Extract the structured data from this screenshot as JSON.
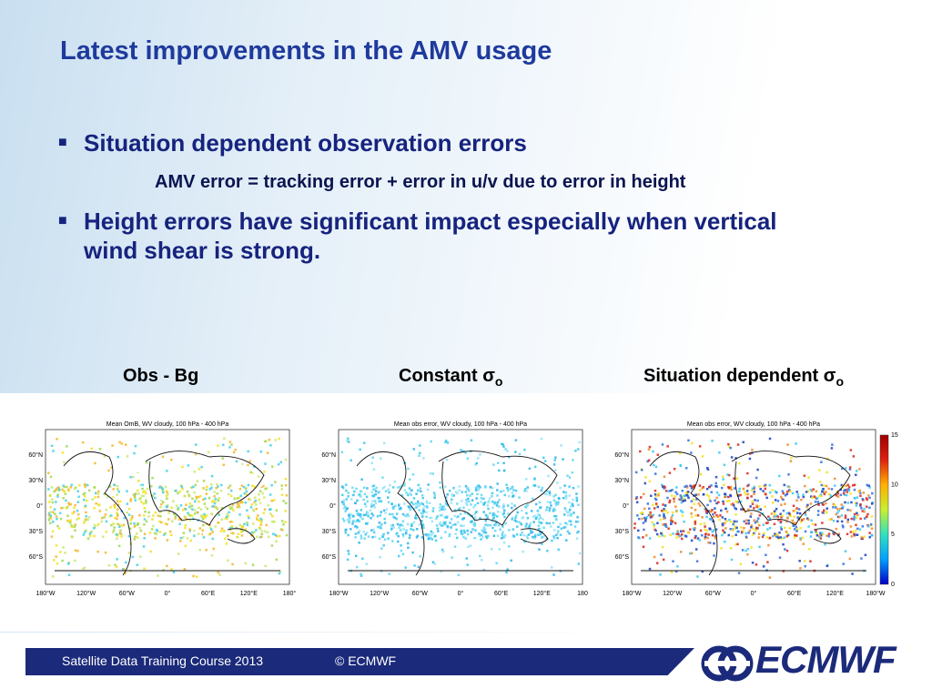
{
  "title": "Latest improvements in the AMV usage",
  "bullets": [
    {
      "text": "Situation dependent observation errors",
      "sub": "AMV error = tracking error + error in u/v due to error in height"
    },
    {
      "text": "Height errors have significant impact especially when vertical wind shear is strong."
    }
  ],
  "panels": [
    {
      "caption": "Obs - Bg",
      "map_title": "Mean OmB, WV cloudy, 100 hPa - 400 hPa",
      "lon_labels": [
        "180°W",
        "120°W",
        "60°W",
        "0°",
        "60°E",
        "120°E",
        "180°"
      ]
    },
    {
      "caption": "Constant σ",
      "caption_sub": "o",
      "map_title": "Mean obs error, WV cloudy, 100 hPa - 400 hPa",
      "lon_labels": [
        "180°W",
        "120°W",
        "60°W",
        "0°",
        "60°E",
        "120°E",
        "180"
      ]
    },
    {
      "caption": "Situation dependent σ",
      "caption_sub": "o",
      "map_title": "Mean obs error, WV cloudy, 100 hPa - 400 hPa",
      "lon_labels": [
        "180°W",
        "120°W",
        "60°W",
        "0°",
        "60°E",
        "120°E",
        "180°W"
      ]
    }
  ],
  "lat_labels": [
    "60°N",
    "30°N",
    "0°",
    "30°S",
    "60°S"
  ],
  "colorbar_labels": [
    "15",
    "10",
    "5",
    "0"
  ],
  "footer": {
    "course": "Satellite Data Training Course 2013",
    "copyright": "© ECMWF",
    "logo": "ECMWF"
  }
}
